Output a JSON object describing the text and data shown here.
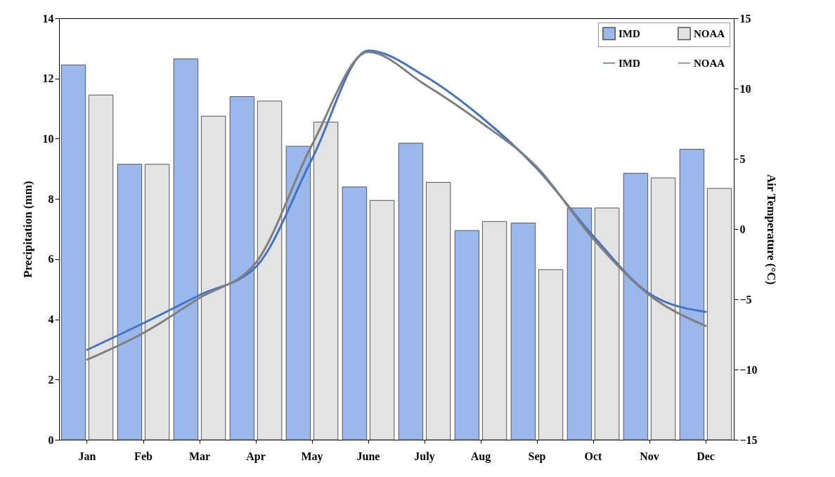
{
  "chart_data": {
    "type": "bar",
    "categories": [
      "Jan",
      "Feb",
      "Mar",
      "Apr",
      "May",
      "June",
      "July",
      "Aug",
      "Sep",
      "Oct",
      "Nov",
      "Dec"
    ],
    "ylabel": "Precipitation  (mm)",
    "y2label": "Air Temperature   (°C)",
    "ylim": [
      0,
      14
    ],
    "yticks": [
      0,
      2,
      4,
      6,
      8,
      10,
      12,
      14
    ],
    "y2lim": [
      -15,
      15
    ],
    "y2ticks": [
      -15,
      -10,
      -5,
      0,
      5,
      10,
      15
    ],
    "legend": "top right",
    "grid": false,
    "series": [
      {
        "name": "IMD",
        "color": "#9bb8ec",
        "values": [
          12.45,
          9.15,
          12.65,
          11.4,
          9.75,
          8.4,
          9.85,
          6.95,
          7.2,
          7.7,
          8.85,
          9.65
        ]
      },
      {
        "name": "NOAA",
        "color": "#e3e3e3",
        "values": [
          11.45,
          9.15,
          10.75,
          11.25,
          10.55,
          7.95,
          8.55,
          7.25,
          5.65,
          7.7,
          8.7,
          8.35
        ]
      },
      {
        "name": "IMD",
        "type": "line",
        "axis": "y2",
        "color": "#4472c4",
        "values": [
          -8.6,
          -6.7,
          -4.7,
          -2.7,
          5.0,
          12.7,
          10.9,
          8.0,
          4.3,
          -0.5,
          -4.6,
          -5.9
        ]
      },
      {
        "name": "NOAA",
        "type": "line",
        "axis": "y2",
        "color": "#7f7f7f",
        "values": [
          -9.3,
          -7.4,
          -4.9,
          -2.4,
          6.0,
          12.6,
          10.3,
          7.6,
          4.4,
          -0.7,
          -4.7,
          -6.9
        ]
      }
    ]
  }
}
